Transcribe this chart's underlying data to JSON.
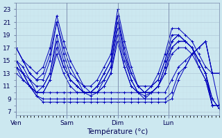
{
  "xlabel": "Température (°c)",
  "background_color": "#cce8f0",
  "line_color": "#0000bb",
  "yticks": [
    7,
    9,
    11,
    13,
    15,
    17,
    19,
    21,
    23
  ],
  "ylim": [
    6.5,
    24
  ],
  "xlim": [
    0,
    84
  ],
  "xtick_positions": [
    0,
    21,
    42,
    63,
    84
  ],
  "xtick_labels": [
    "Ven",
    "Sam",
    "Dim",
    "Lun"
  ],
  "xtick_show": [
    0,
    21,
    42,
    63
  ],
  "series": [
    [
      17,
      15,
      14,
      13,
      14,
      17,
      22,
      18,
      15,
      13,
      11,
      11,
      12,
      14,
      16,
      23,
      18,
      14,
      11,
      11,
      11,
      13,
      16,
      20,
      20,
      19,
      18,
      16,
      14,
      13,
      8
    ],
    [
      17,
      15,
      13,
      12,
      13,
      16,
      21,
      17,
      14,
      12,
      11,
      10,
      11,
      13,
      15,
      22,
      17,
      13,
      11,
      10,
      11,
      12,
      15,
      19,
      19,
      18,
      17,
      15,
      13,
      9,
      7.5
    ],
    [
      17,
      15,
      13,
      12,
      12,
      15,
      21,
      16,
      13,
      12,
      10,
      10,
      11,
      13,
      15,
      22,
      16,
      13,
      11,
      10,
      11,
      12,
      15,
      18,
      19,
      18,
      17,
      15,
      13,
      9,
      7.5
    ],
    [
      14,
      13,
      12,
      11,
      11,
      13,
      19,
      15,
      12,
      11,
      10,
      10,
      11,
      12,
      14,
      21,
      16,
      12,
      10,
      10,
      10,
      11,
      14,
      18,
      19,
      18,
      17,
      15,
      13,
      8,
      8
    ],
    [
      14,
      13,
      11,
      10,
      11,
      13,
      18,
      14,
      12,
      11,
      10,
      10,
      10,
      12,
      14,
      20,
      15,
      12,
      10,
      10,
      10,
      11,
      14,
      17,
      18,
      18,
      17,
      15,
      13,
      8,
      8
    ],
    [
      14,
      12,
      11,
      10,
      10,
      12,
      17,
      14,
      12,
      11,
      10,
      10,
      10,
      11,
      13,
      19,
      14,
      11,
      10,
      9.5,
      10,
      11,
      13,
      17,
      18,
      18,
      17,
      14,
      12,
      8,
      8
    ],
    [
      13,
      12,
      11,
      10,
      10,
      12,
      16,
      13,
      11,
      10,
      10,
      9.5,
      10,
      11,
      13,
      18,
      14,
      11,
      10,
      9,
      10,
      11,
      13,
      16,
      17,
      17,
      16,
      14,
      12,
      8,
      8
    ],
    [
      15,
      14,
      12,
      10,
      10,
      10,
      10,
      10,
      10,
      10,
      10,
      10,
      10,
      10,
      10,
      10,
      10,
      10,
      10,
      10,
      10,
      10,
      10,
      12,
      14,
      15,
      16,
      17,
      18,
      13,
      13
    ],
    [
      15,
      13,
      11,
      9.5,
      9,
      9,
      9,
      9,
      9,
      9,
      9,
      9,
      9,
      9,
      9,
      9,
      9,
      9,
      9,
      9,
      9,
      9,
      9,
      10,
      13,
      14,
      16,
      17,
      18,
      13,
      13
    ],
    [
      15,
      13,
      11,
      9.5,
      8.5,
      8.5,
      8.5,
      8.5,
      8.5,
      8.5,
      8.5,
      8.5,
      8.5,
      8.5,
      8.5,
      8.5,
      8.5,
      8.5,
      8.5,
      8.5,
      8.5,
      8.5,
      8.5,
      9,
      12,
      14,
      16,
      17,
      18,
      13,
      13
    ]
  ]
}
